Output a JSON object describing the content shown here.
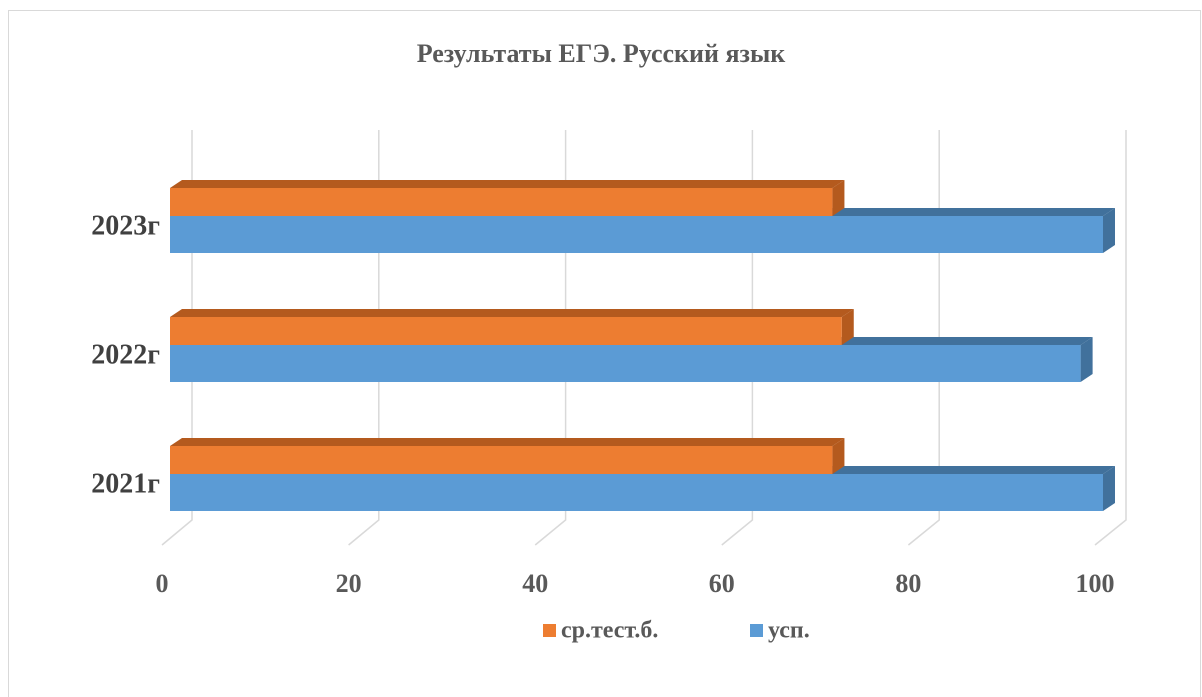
{
  "chart_data": {
    "type": "bar3d_horizontal",
    "title": "Результаты ЕГЭ. Русский язык",
    "categories": [
      "2021г",
      "2022г",
      "2023г"
    ],
    "series": [
      {
        "name": "ср.тест.б.",
        "color": "#ed7d31",
        "side": "#b45a1e",
        "values": [
          71,
          72,
          71
        ]
      },
      {
        "name": "усп.",
        "color": "#5b9bd5",
        "side": "#41719c",
        "values": [
          100,
          97.6,
          100
        ]
      }
    ],
    "xlim": [
      0,
      100
    ],
    "xticks": [
      0,
      20,
      40,
      60,
      80,
      100
    ],
    "grid": true,
    "legend": "bottom"
  }
}
